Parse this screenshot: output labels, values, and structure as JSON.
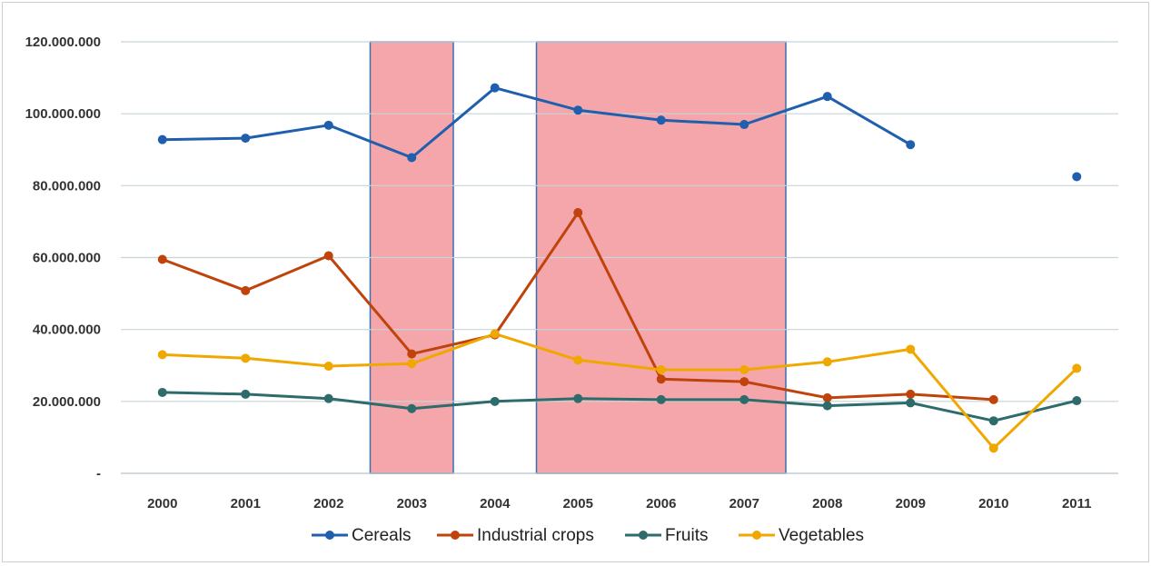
{
  "chart_data": {
    "type": "line",
    "categories": [
      "2000",
      "2001",
      "2002",
      "2003",
      "2004",
      "2005",
      "2006",
      "2007",
      "2008",
      "2009",
      "2010",
      "2011"
    ],
    "ylim": [
      0,
      120000000
    ],
    "yticks": [
      0,
      20000000,
      40000000,
      60000000,
      80000000,
      100000000,
      120000000
    ],
    "ytick_labels": [
      "-",
      "20.000.000",
      "40.000.000",
      "60.000.000",
      "80.000.000",
      "100.000.000",
      "120.000.000"
    ],
    "grid": true,
    "legend_position": "bottom",
    "highlight_bands": [
      {
        "from": "2003",
        "to": "2003",
        "color": "#f4a6ab"
      },
      {
        "from": "2005",
        "to": "2007",
        "color": "#f4a6ab"
      }
    ],
    "series": [
      {
        "name": "Cereals",
        "color": "#1f5fad",
        "values": [
          92800000,
          93200000,
          96800000,
          87800000,
          107200000,
          101000000,
          98200000,
          97000000,
          104800000,
          91400000,
          null,
          82500000
        ]
      },
      {
        "name": "Industrial crops",
        "color": "#c0430b",
        "values": [
          59500000,
          50800000,
          60500000,
          33200000,
          38500000,
          72500000,
          26200000,
          25500000,
          21000000,
          22000000,
          20500000,
          null
        ]
      },
      {
        "name": "Fruits",
        "color": "#2e6b6b",
        "values": [
          22500000,
          22000000,
          20800000,
          18000000,
          20000000,
          20800000,
          20500000,
          20500000,
          18800000,
          19600000,
          14600000,
          20200000
        ]
      },
      {
        "name": "Vegetables",
        "color": "#f0a800",
        "values": [
          33000000,
          32000000,
          29800000,
          30500000,
          38800000,
          31500000,
          28800000,
          28800000,
          31000000,
          34500000,
          7000000,
          29200000
        ]
      }
    ]
  }
}
